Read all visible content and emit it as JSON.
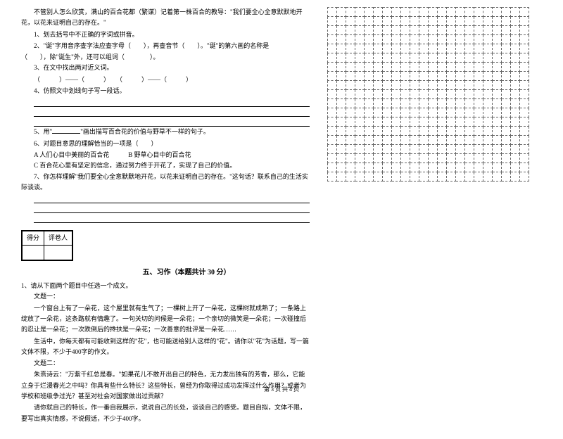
{
  "intro_para": "不管别人怎么欣赏，满山的百合花都（繁谋）记着第一株百合的教导：\"我们要全心全意默默地开花，以花来证明自己的存在。\"",
  "q1": "1、划去括号中不正确的字词或拼音。",
  "q2_a": "2、\"诞\"字用音序查字法应查字母（　　），再查音节（　　）。\"诞\"的第六画的名称是",
  "q2_b": "（　　），除\"诞生\"外，还可以组词（　　　　）。",
  "q3": "3、在文中找出两对近义词。",
  "q3_blanks": "（　　　）——（　　　）　　（　　　）——（　　　）",
  "q4": "4、仿照文中划线句子写一段话。",
  "q5_a": "5、用\"",
  "q5_b": "\"画出描写百合花的价值与野草不一样的句子。",
  "q6": "6、对题目意思的理解恰当的一项是（　　）",
  "q6_a": "A 人们心目中美丽的百合花",
  "q6_b": "B 野草心目中的百合花",
  "q6_c": "C 百合花心里有坚定的信念，通过努力终于开花了，实现了自己的价值。",
  "q7": "7、你怎样理解\"我们要全心全意默默地开花，以花来证明自己的存在。\"这句话？联系自己的生活实际谈谈。",
  "score_label_1": "得分",
  "score_label_2": "评卷人",
  "section5_title": "五、习作（本题共计 30 分）",
  "xz_intro": "1、请从下面两个题目中任选一个成文。",
  "xz_t1": "文题一：",
  "xz_t1_p1": "一个窗台上有了一朵花，这个屋里就有生气了；一棵树上开了一朵花，这棵树就成熟了；一条路上绽放了一朵花，这条路就有情趣了。一句关切的问候是一朵花；一个亲切的微笑是一朵花；一次碰撞后的忍让是一朵花；一次跌倒后的搀扶是一朵花；一次善意的批评是一朵花……",
  "xz_t1_p2": "生活中，你每天都有可能收到这样的\"花\"，也可能送给别人这样的\"花\"。请你以\"花\"为话题，写一篇文体不限，不少于400字的作文。",
  "xz_t2": "文题二：",
  "xz_t2_p1": "朱熹诗云：\"万紫千红总是春。\"如果花儿不敢开出自己的特色，无力发出独有的芳香，那么，它能立身于烂漫春光之中吗？你具有些什么特长？这些特长，曾经为你取得过成功发挥过什么作用？或者为学校和班级争过光？甚至对社会对国家做出过贡献？",
  "xz_t2_p2": "请你就自己的特长，作一番自我展示，说说自己的长处，谈谈自己的感受。题目自拟，文体不限，要写出真实情感，不说假话，不少于400字。",
  "footer": "第 3 页 共 4 页",
  "grid": {
    "rows": 19,
    "cols": 22
  }
}
